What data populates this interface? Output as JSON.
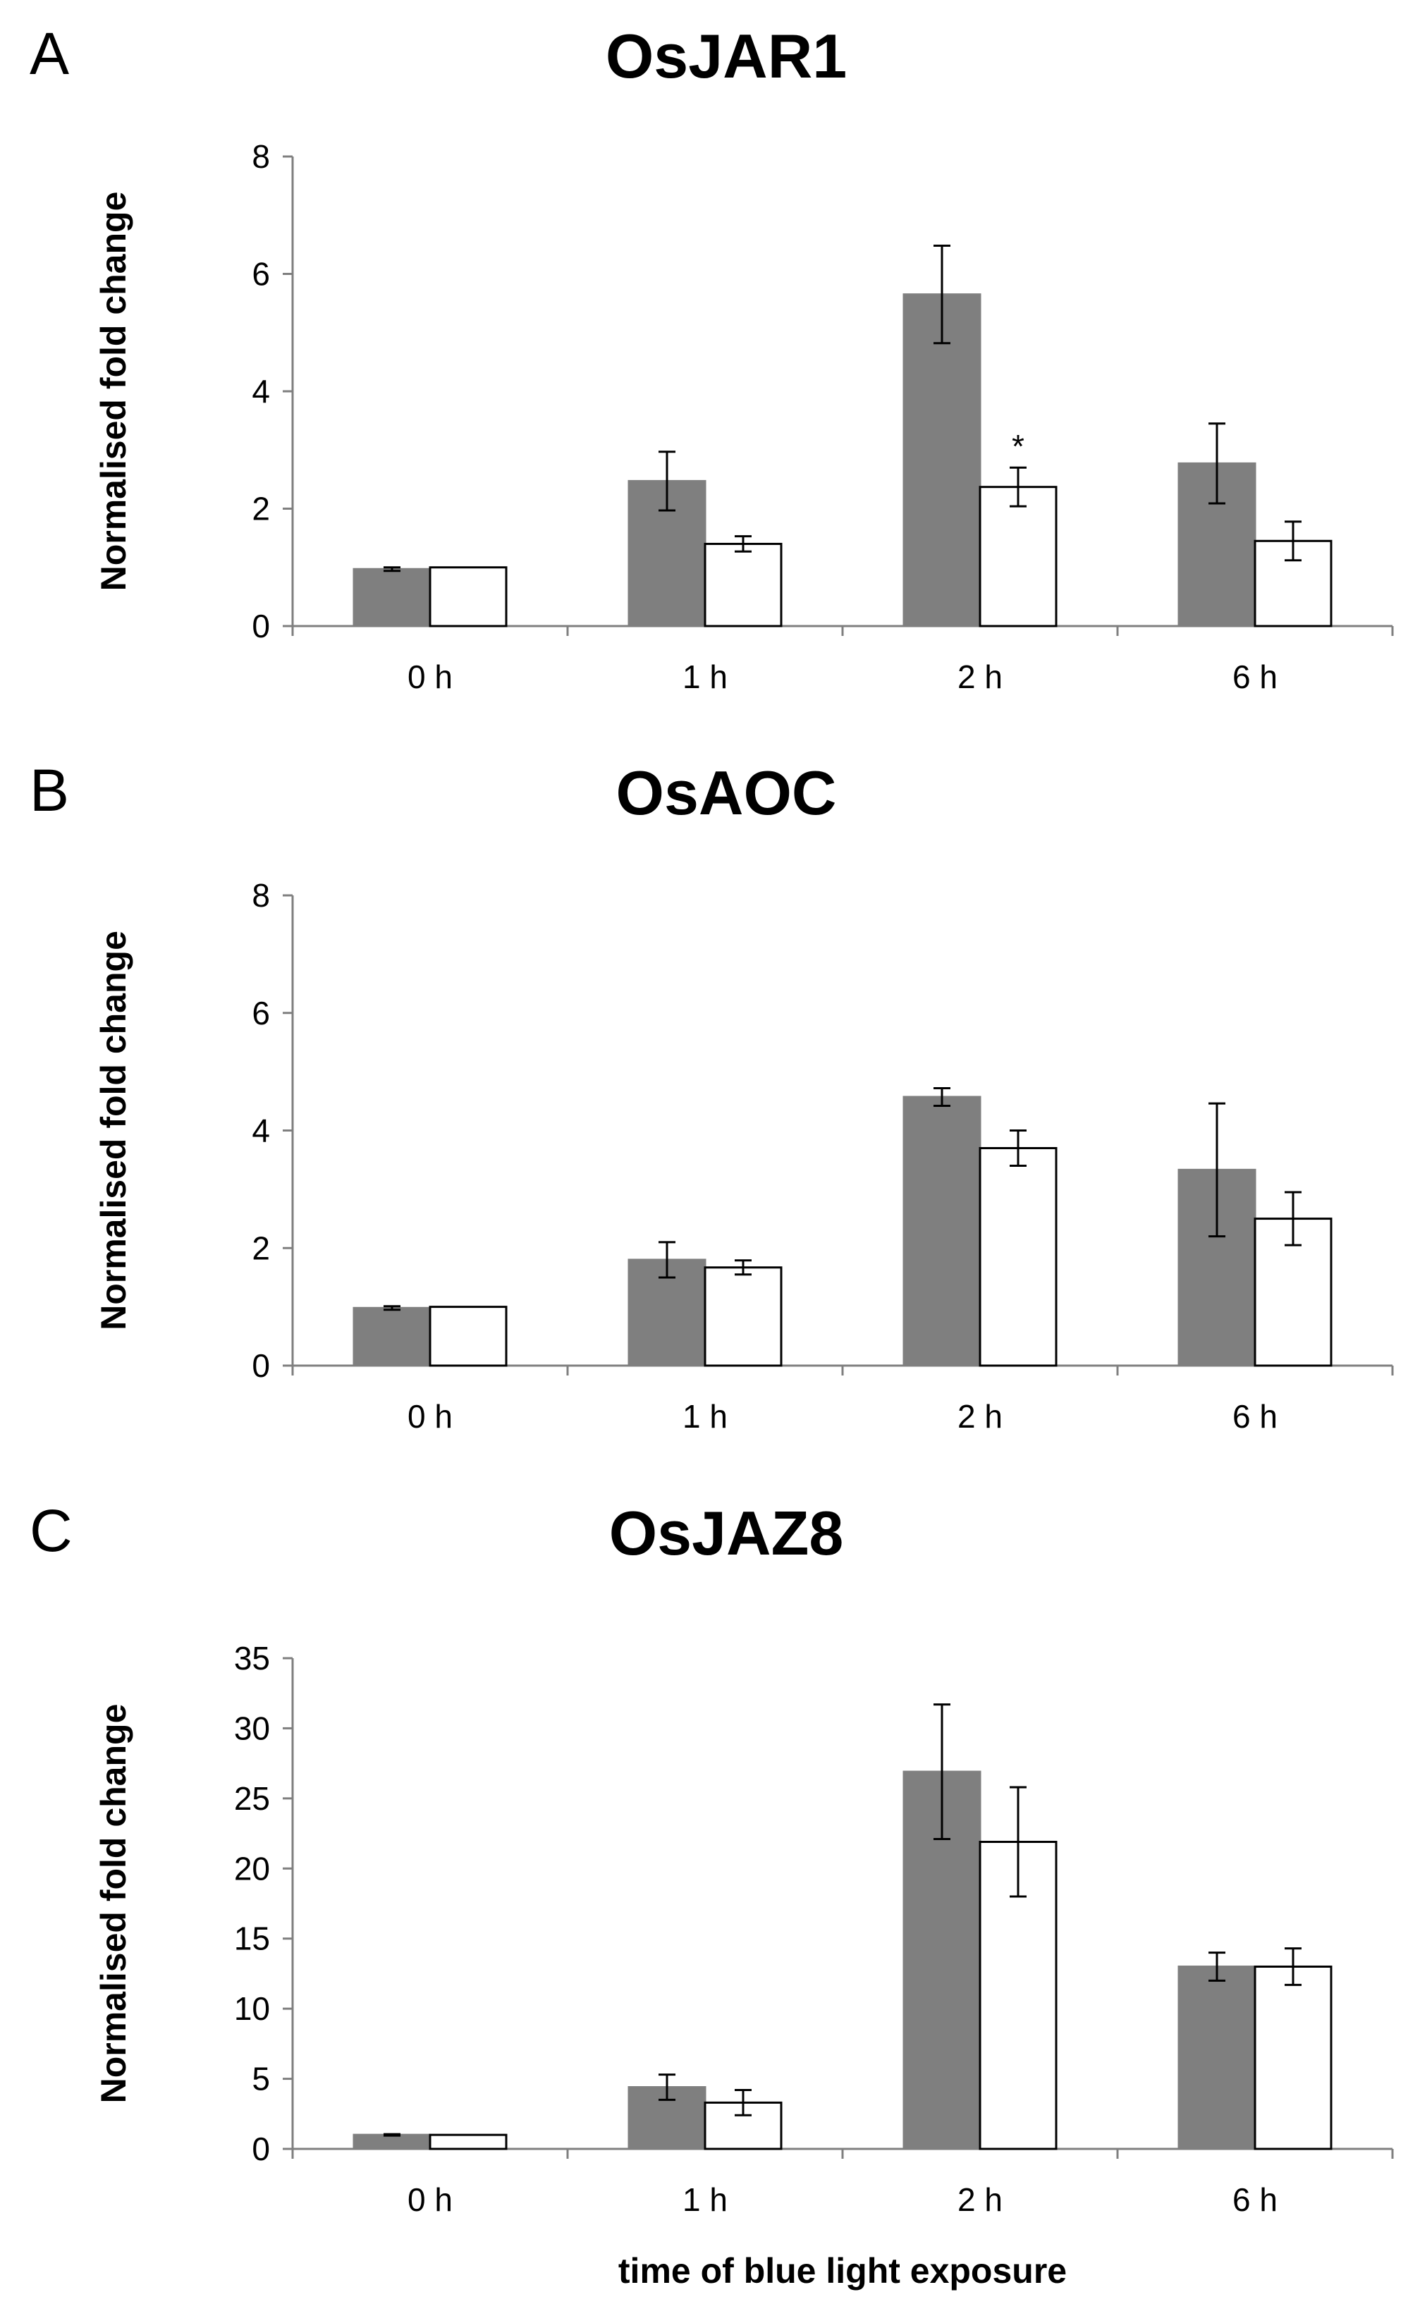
{
  "chart_data": [
    {
      "type": "bar",
      "panel": "A",
      "title": "OsJAR1",
      "ylabel": "Normalised fold change",
      "xlabel": "",
      "categories": [
        "0 h",
        "1 h",
        "2 h",
        "6 h"
      ],
      "ylim": [
        0,
        8
      ],
      "yticks": [
        0,
        2,
        4,
        6,
        8
      ],
      "series": [
        {
          "color": "#7f7f7f",
          "values": [
            0.97,
            2.47,
            5.65,
            2.77
          ],
          "errors": [
            0.03,
            0.5,
            0.83,
            0.68
          ]
        },
        {
          "color": "#ffffff",
          "values": [
            1.0,
            1.4,
            2.37,
            1.45
          ],
          "errors": [
            0.0,
            0.13,
            0.33,
            0.33
          ]
        }
      ],
      "annotations": [
        {
          "text": "*",
          "category": "2 h",
          "series": 1
        }
      ]
    },
    {
      "type": "bar",
      "panel": "B",
      "title": "OsAOC",
      "ylabel": "Normalised fold change",
      "xlabel": "",
      "categories": [
        "0 h",
        "1 h",
        "2 h",
        "6 h"
      ],
      "ylim": [
        0,
        8
      ],
      "yticks": [
        0,
        2,
        4,
        6,
        8
      ],
      "series": [
        {
          "color": "#7f7f7f",
          "values": [
            0.98,
            1.8,
            4.57,
            3.33
          ],
          "errors": [
            0.03,
            0.3,
            0.15,
            1.13
          ]
        },
        {
          "color": "#ffffff",
          "values": [
            1.0,
            1.67,
            3.7,
            2.5
          ],
          "errors": [
            0.0,
            0.12,
            0.3,
            0.45
          ]
        }
      ],
      "annotations": []
    },
    {
      "type": "bar",
      "panel": "C",
      "title": "OsJAZ8",
      "ylabel": "Normalised fold change",
      "xlabel": "time of blue light exposure",
      "categories": [
        "0 h",
        "1 h",
        "2 h",
        "6 h"
      ],
      "ylim": [
        0,
        35
      ],
      "yticks": [
        0,
        5,
        10,
        15,
        20,
        25,
        30,
        35
      ],
      "series": [
        {
          "color": "#7f7f7f",
          "values": [
            1.0,
            4.4,
            26.9,
            13.0
          ],
          "errors": [
            0.05,
            0.9,
            4.8,
            1.0
          ]
        },
        {
          "color": "#ffffff",
          "values": [
            1.0,
            3.3,
            21.9,
            13.0
          ],
          "errors": [
            0.0,
            0.9,
            3.9,
            1.3
          ]
        }
      ],
      "annotations": []
    }
  ]
}
